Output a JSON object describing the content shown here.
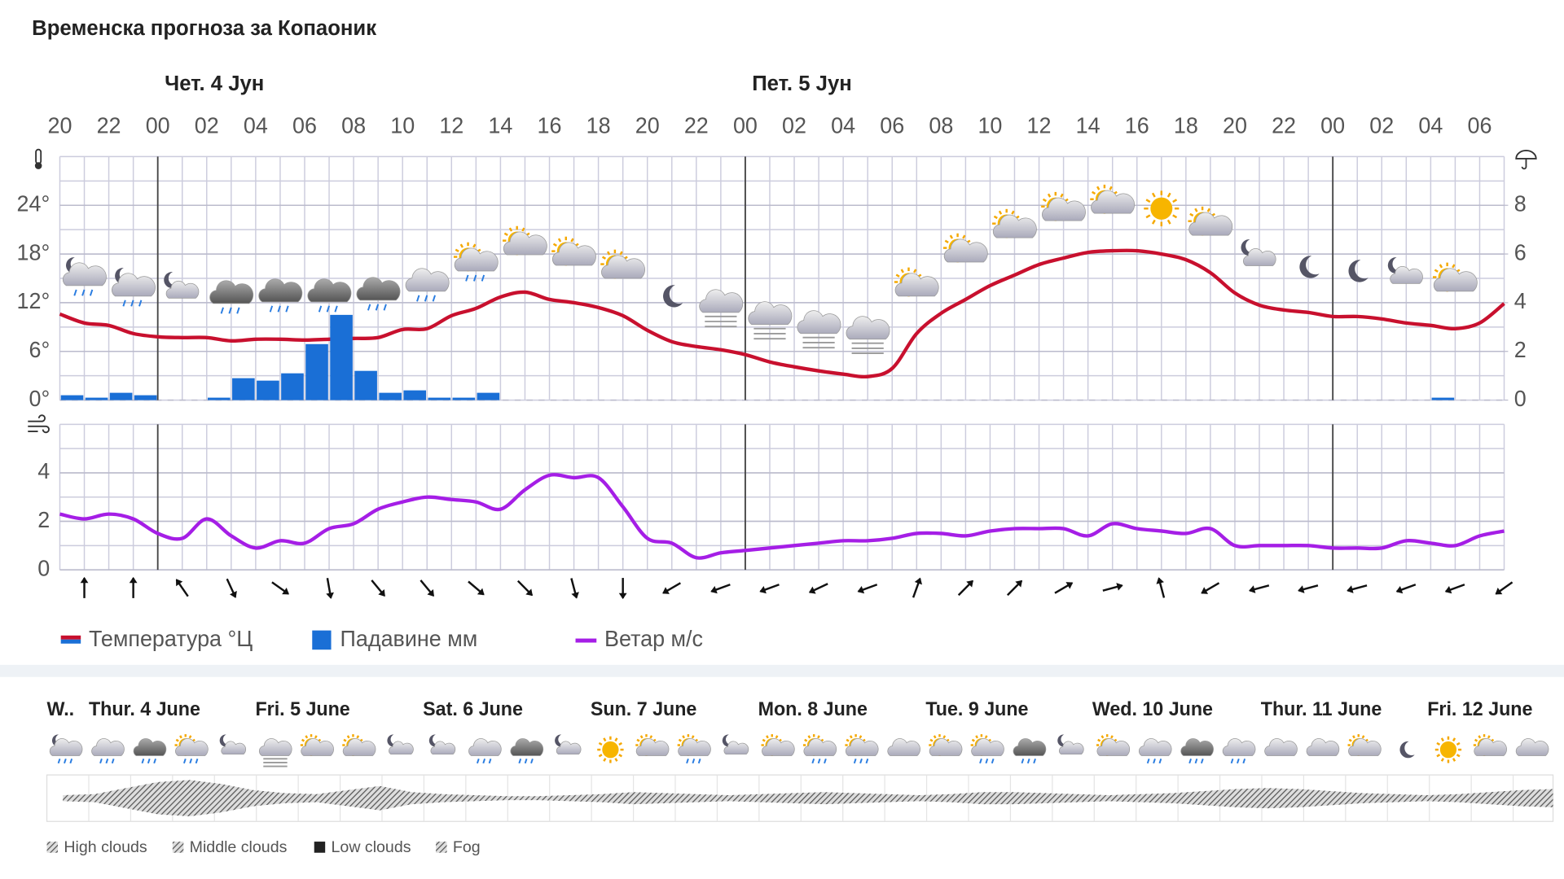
{
  "chart_data": [
    {
      "type": "line-bar",
      "title": "Временска прогноза за Копаоник",
      "day_labels": [
        "Чет. 4 Јун",
        "Пет. 5 Јун"
      ],
      "categories": [
        "20",
        null,
        "22",
        null,
        "00",
        null,
        "02",
        null,
        "04",
        null,
        "06",
        null,
        "08",
        null,
        "10",
        null,
        "12",
        null,
        "14",
        null,
        "16",
        null,
        "18",
        null,
        "20",
        null,
        "22",
        null,
        "00",
        null,
        "02",
        null,
        "04",
        null,
        "06",
        null,
        "08",
        null,
        "10",
        null,
        "12",
        null,
        "14",
        null,
        "16",
        null,
        "18",
        null,
        "20",
        null,
        "22",
        null,
        "00",
        null,
        "02",
        null,
        "04",
        null,
        "06",
        null
      ],
      "series": [
        {
          "name": "Температура °Ц",
          "color": "#c8102e",
          "kind": "line",
          "values": [
            10.6,
            9.5,
            9.2,
            8.2,
            7.8,
            7.7,
            7.7,
            7.3,
            7.5,
            7.5,
            7.4,
            7.5,
            7.6,
            7.7,
            8.7,
            8.8,
            10.4,
            11.3,
            12.7,
            13.3,
            12.4,
            12.0,
            11.4,
            10.4,
            8.6,
            7.2,
            6.6,
            6.2,
            5.6,
            4.7,
            4.1,
            3.6,
            3.2,
            2.9,
            3.9,
            8.2,
            10.7,
            12.4,
            14.1,
            15.4,
            16.7,
            17.5,
            18.2,
            18.4,
            18.4,
            18.0,
            17.3,
            15.7,
            13.2,
            11.7,
            11.1,
            10.8,
            10.3,
            10.3,
            10.0,
            9.5,
            9.2,
            8.8,
            9.5,
            11.9
          ]
        },
        {
          "name": "Падавине мм",
          "color": "#1a6fd6",
          "kind": "bar",
          "axis": "y2",
          "values": [
            0.2,
            0.1,
            0.3,
            0.2,
            0,
            0,
            0.1,
            0.9,
            0.8,
            1.1,
            2.3,
            3.5,
            1.2,
            0.3,
            0.4,
            0.1,
            0.1,
            0.3,
            0,
            0,
            0,
            0,
            0,
            0,
            0,
            0,
            0,
            0,
            0,
            0,
            0,
            0,
            0,
            0,
            0,
            0,
            0,
            0,
            0,
            0,
            0,
            0,
            0,
            0,
            0,
            0,
            0,
            0,
            0,
            0,
            0,
            0,
            0,
            0,
            0,
            0,
            0.1,
            0,
            0,
            0
          ]
        }
      ],
      "ylim": [
        0,
        30
      ],
      "yticks": [
        {
          "value": 0,
          "label": "0°"
        },
        {
          "value": 6,
          "label": "6°"
        },
        {
          "value": 12,
          "label": "12°"
        },
        {
          "value": 18,
          "label": "18°"
        },
        {
          "value": 24,
          "label": "24°"
        }
      ],
      "y2lim": [
        0,
        10
      ],
      "y2ticks": [
        0,
        2,
        4,
        6,
        8
      ],
      "grid": true
    },
    {
      "type": "line",
      "ylim": [
        0,
        6
      ],
      "yticks": [
        0,
        2,
        4
      ],
      "grid": true,
      "series": [
        {
          "name": "Ветар м/с",
          "color": "#a51ee6",
          "values": [
            2.3,
            2.1,
            2.3,
            2.1,
            1.5,
            1.3,
            2.1,
            1.4,
            0.9,
            1.2,
            1.1,
            1.7,
            1.9,
            2.5,
            2.8,
            3.0,
            2.9,
            2.8,
            2.5,
            3.3,
            3.9,
            3.8,
            3.8,
            2.6,
            1.3,
            1.1,
            0.5,
            0.7,
            0.8,
            0.9,
            1.0,
            1.1,
            1.2,
            1.2,
            1.3,
            1.5,
            1.5,
            1.4,
            1.6,
            1.7,
            1.7,
            1.7,
            1.4,
            1.9,
            1.7,
            1.6,
            1.5,
            1.7,
            1.0,
            1.0,
            1.0,
            1.0,
            0.9,
            0.9,
            0.9,
            1.2,
            1.1,
            1.0,
            1.4,
            1.6
          ]
        }
      ],
      "wind_direction": [
        0,
        0,
        325,
        155,
        125,
        170,
        140,
        140,
        130,
        135,
        165,
        180,
        240,
        250,
        250,
        245,
        250,
        20,
        45,
        45,
        60,
        75,
        345,
        240,
        255,
        255,
        255,
        250,
        250,
        235
      ]
    }
  ],
  "meteogram": {
    "days": [
      "W..",
      "Thur. 4 June",
      "Fri. 5 June",
      "Sat. 6 June",
      "Sun. 7 June",
      "Mon. 8 June",
      "Tue. 9 June",
      "Wed. 10 June",
      "Thur. 11 June",
      "Fri. 12 June"
    ],
    "legend": [
      "High clouds",
      "Middle clouds",
      "Low clouds",
      "Fog"
    ]
  }
}
